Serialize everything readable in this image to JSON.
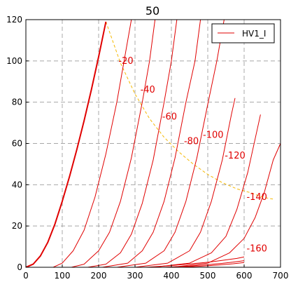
{
  "chart_data": {
    "type": "line",
    "title": "50",
    "xlim": [
      0,
      700
    ],
    "ylim": [
      0,
      120
    ],
    "x_ticks": [
      0,
      100,
      200,
      300,
      400,
      500,
      600,
      700
    ],
    "y_ticks": [
      0,
      20,
      40,
      60,
      80,
      100,
      120
    ],
    "grid": true,
    "legend": {
      "placement": "top-right",
      "entries": [
        "HV1_I"
      ]
    },
    "colors": {
      "curve": "#e00000",
      "load_line": "#f5b800",
      "grid": "#a8a8a8"
    },
    "series": [
      {
        "name": "HV1_I",
        "label": "",
        "bold": true,
        "x": [
          0,
          20,
          40,
          60,
          80,
          100,
          120,
          140,
          160,
          180,
          200,
          220
        ],
        "y": [
          0,
          1.5,
          5.5,
          12,
          21,
          32,
          44,
          57,
          71,
          86,
          102,
          119
        ]
      },
      {
        "label": "-20",
        "x": [
          75,
          100,
          130,
          160,
          190,
          220,
          250,
          270,
          290
        ],
        "y": [
          0,
          2,
          8,
          18,
          34,
          55,
          80,
          100,
          120
        ]
      },
      {
        "label": "-40",
        "x": [
          125,
          160,
          200,
          230,
          260,
          290,
          320,
          340,
          355
        ],
        "y": [
          0,
          1.5,
          8,
          17,
          32,
          53,
          80,
          100,
          120
        ]
      },
      {
        "label": "-60",
        "x": [
          170,
          220,
          260,
          290,
          320,
          350,
          380,
          400,
          415
        ],
        "y": [
          0,
          1.5,
          7,
          16,
          31,
          52,
          80,
          100,
          120
        ]
      },
      {
        "label": "-80",
        "x": [
          210,
          280,
          320,
          350,
          380,
          410,
          440,
          465,
          480
        ],
        "y": [
          0,
          2,
          8,
          17,
          32,
          53,
          80,
          100,
          120
        ]
      },
      {
        "label": "-100",
        "x": [
          250,
          330,
          380,
          410,
          440,
          470,
          500,
          525,
          545
        ],
        "y": [
          0,
          2,
          8,
          17,
          32,
          53,
          79,
          100,
          120
        ]
      },
      {
        "label": "-120",
        "x": [
          300,
          390,
          450,
          480,
          510,
          540,
          565,
          575
        ],
        "y": [
          0,
          2,
          8,
          17,
          32,
          52,
          74,
          82
        ]
      },
      {
        "label": "-140",
        "x": [
          350,
          450,
          510,
          550,
          580,
          610,
          635,
          645
        ],
        "y": [
          0,
          2,
          7,
          15,
          28,
          46,
          66,
          74
        ]
      },
      {
        "label": "-160",
        "x": [
          400,
          500,
          560,
          600,
          630,
          655,
          680,
          700
        ],
        "y": [
          0,
          2,
          7,
          14,
          24,
          36,
          52,
          60
        ]
      },
      {
        "label": "",
        "x": [
          330,
          400,
          460,
          500,
          530,
          560,
          580,
          600
        ],
        "y": [
          0,
          0.8,
          1.8,
          2.4,
          3.1,
          3.8,
          4.3,
          5
        ]
      },
      {
        "label": "",
        "x": [
          380,
          450,
          500,
          540,
          570,
          600
        ],
        "y": [
          0,
          0.6,
          1.3,
          1.9,
          2.5,
          3.2
        ]
      },
      {
        "label": "",
        "x": [
          420,
          480,
          530,
          570,
          600
        ],
        "y": [
          0,
          0.5,
          1.1,
          1.7,
          2.3
        ]
      }
    ],
    "load_line": {
      "x": [
        220,
        260,
        300,
        340,
        380,
        420,
        460,
        500,
        540,
        580,
        620,
        650,
        680
      ],
      "y": [
        119,
        99,
        84,
        72,
        63,
        56,
        50,
        45,
        41,
        38,
        36,
        34,
        33
      ]
    },
    "curve_labels": [
      {
        "text": "-20",
        "x": 275,
        "y": 100
      },
      {
        "text": "-40",
        "x": 335,
        "y": 86
      },
      {
        "text": "-60",
        "x": 395,
        "y": 73
      },
      {
        "text": "-80",
        "x": 455,
        "y": 61
      },
      {
        "text": "-100",
        "x": 515,
        "y": 64
      },
      {
        "text": "-120",
        "x": 575,
        "y": 54
      },
      {
        "text": "-140",
        "x": 635,
        "y": 34
      },
      {
        "text": "-160",
        "x": 635,
        "y": 9
      }
    ]
  }
}
